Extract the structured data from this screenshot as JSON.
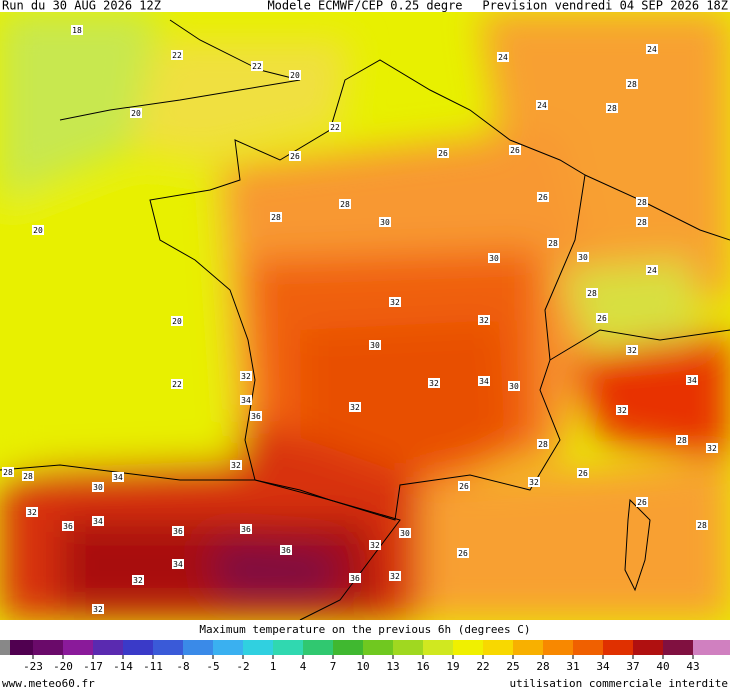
{
  "header": {
    "run": "Run du 30 AUG 2026 12Z",
    "model": "Modele ECMWF/CEP 0.25 degre",
    "forecast": "Prevision vendredi 04 SEP 2026 18Z"
  },
  "contour_labels": [
    18,
    22,
    22,
    20,
    20,
    22,
    26,
    26,
    26,
    24,
    24,
    28,
    28,
    24,
    20,
    20,
    22,
    28,
    28,
    30,
    30,
    26,
    28,
    30,
    28,
    28,
    28,
    26,
    24,
    32,
    32,
    30,
    32,
    34,
    30,
    32,
    34,
    36,
    32,
    28,
    26,
    32,
    34,
    32,
    28,
    32,
    26,
    28,
    26,
    32,
    34,
    30,
    28,
    28,
    32,
    34,
    36,
    36,
    36,
    36,
    32,
    32,
    36,
    32,
    32,
    34,
    30,
    26,
    32
  ],
  "colorbar": {
    "title": "Maximum temperature on the previous 6h (degrees C)",
    "ticks": [
      -23,
      -20,
      -17,
      -14,
      -11,
      -8,
      -5,
      -2,
      1,
      4,
      7,
      10,
      13,
      16,
      19,
      22,
      25,
      28,
      31,
      34,
      37,
      40,
      43
    ],
    "colors": [
      "#6a0a6a",
      "#8a1a9a",
      "#5a2ab0",
      "#3a3ac8",
      "#3a5ad8",
      "#3a8ae8",
      "#3ab0f0",
      "#30d0e0",
      "#30d8b0",
      "#30c870",
      "#40b830",
      "#70c820",
      "#a0d820",
      "#d0e820",
      "#f0f000",
      "#f8d800",
      "#f8b000",
      "#f88800",
      "#f06000",
      "#e03000",
      "#b01010",
      "#801040",
      "#d080c0"
    ]
  },
  "footer": {
    "site": "www.meteo60.fr",
    "notice": "utilisation commerciale interdite"
  }
}
